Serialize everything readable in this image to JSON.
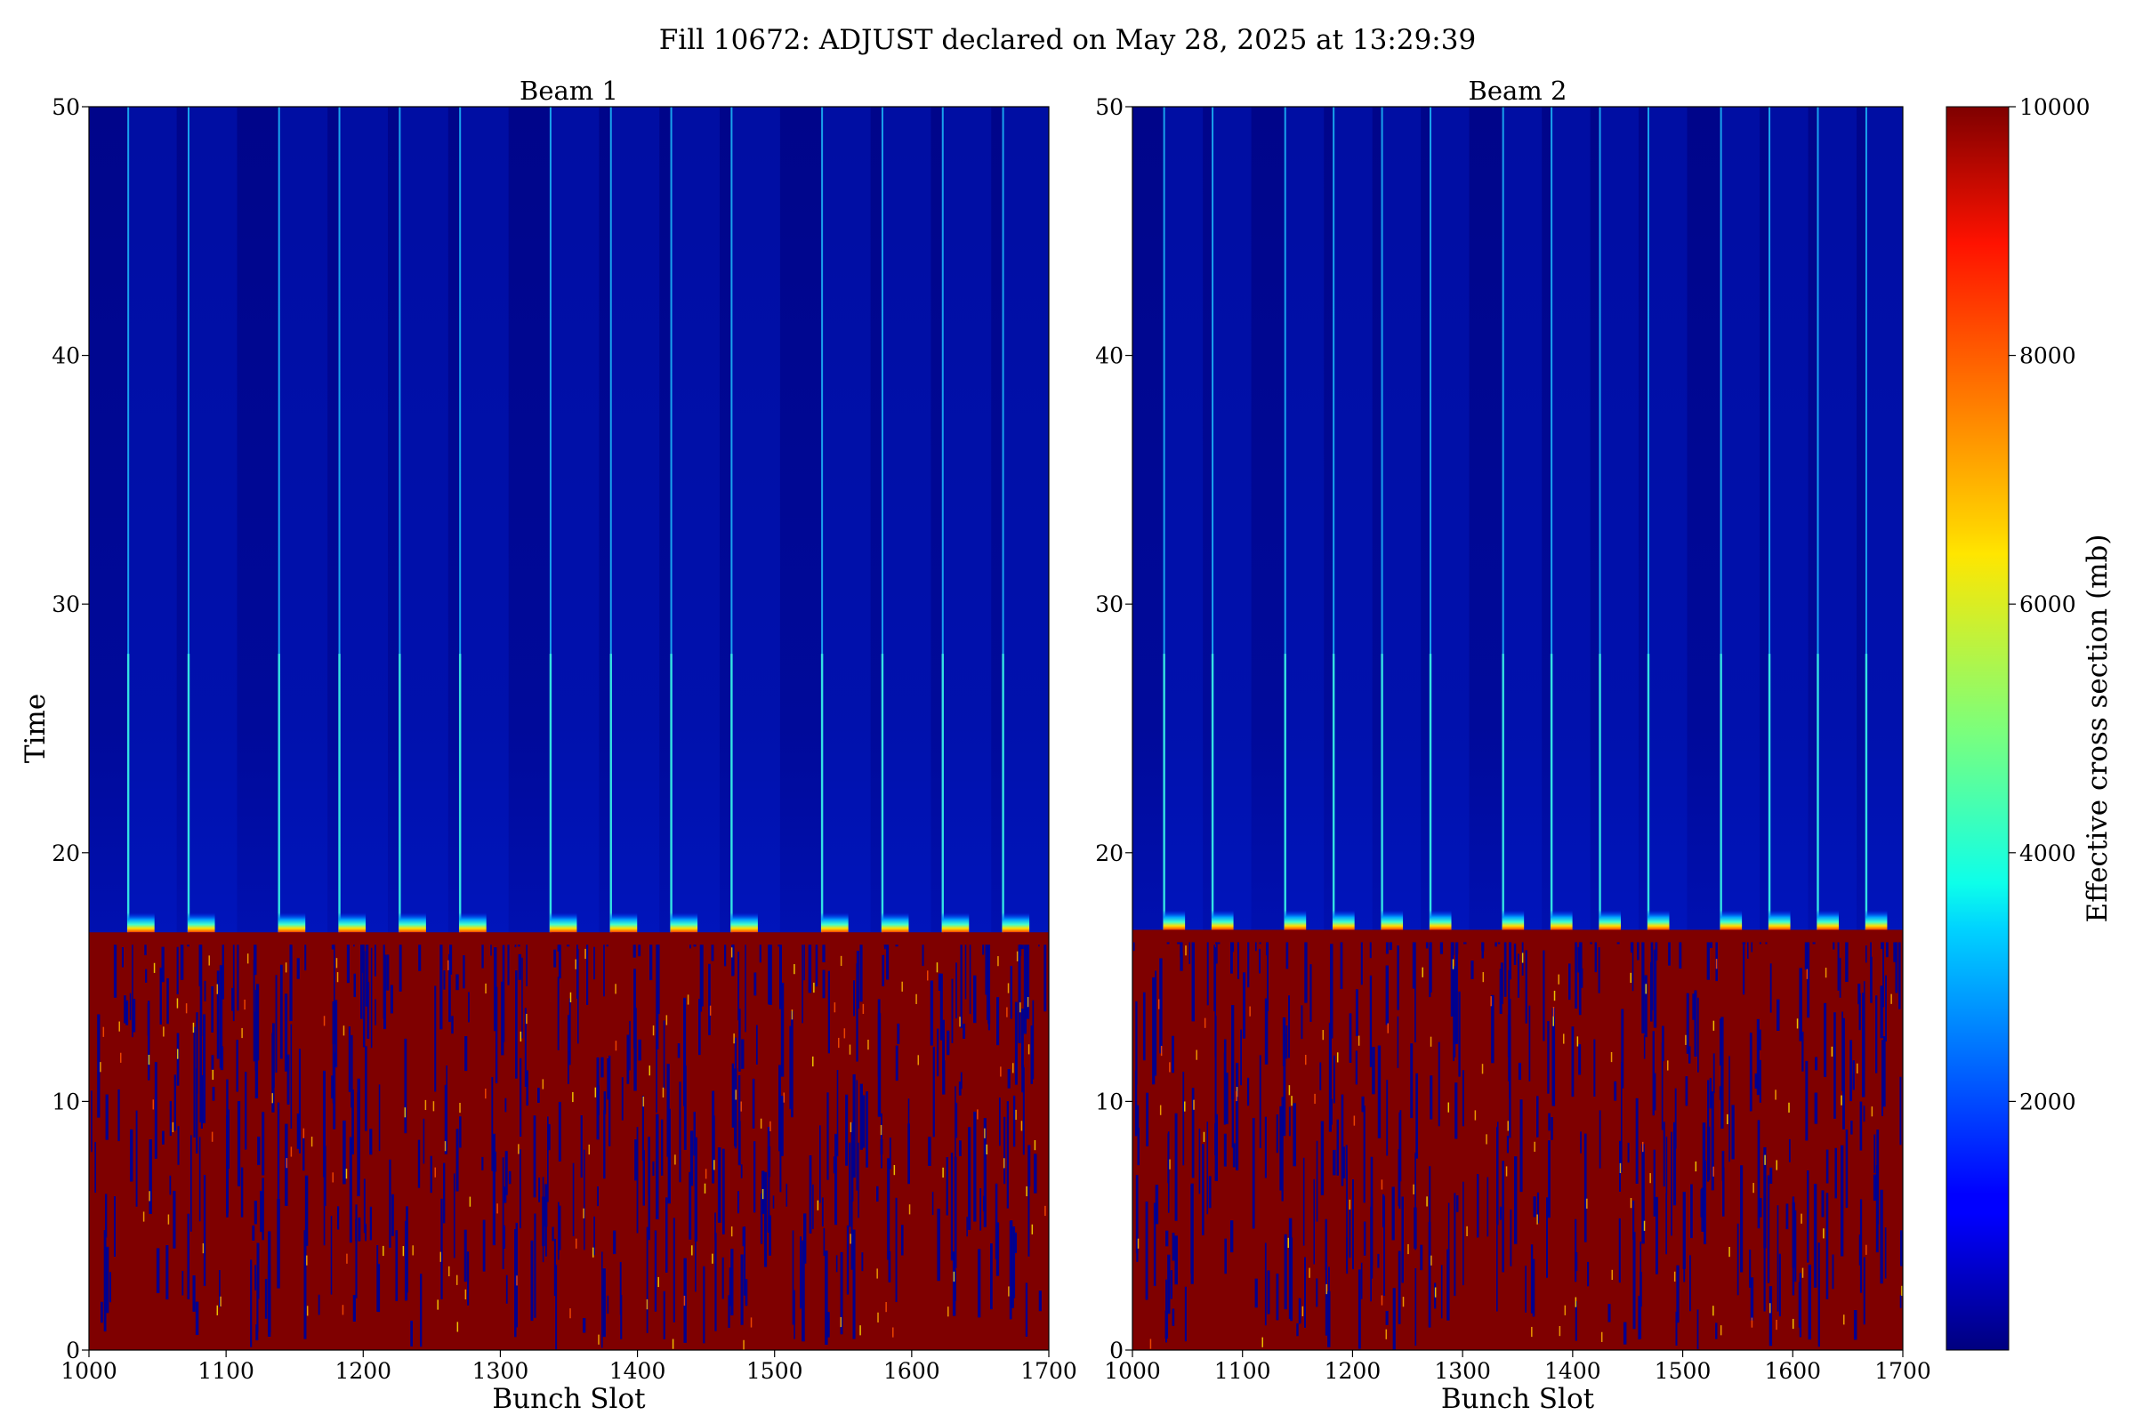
{
  "chart_data": {
    "type": "heatmap",
    "title": "Fill 10672: ADJUST declared on May 28, 2025 at 13:29:39",
    "colorbar": {
      "label": "Effective cross section (mb)",
      "range": [
        0,
        10000
      ],
      "ticks": [
        "2000",
        "4000",
        "6000",
        "8000",
        "10000"
      ],
      "colormap": "jet"
    },
    "panels": [
      {
        "title": "Beam 1",
        "xlabel": "Bunch Slot",
        "ylabel": "Time",
        "xlim": [
          1000,
          1700
        ],
        "ylim": [
          0,
          50
        ],
        "x_ticks": [
          "1000",
          "1100",
          "1200",
          "1300",
          "1400",
          "1500",
          "1600",
          "1700"
        ],
        "y_ticks": [
          "0",
          "10",
          "20",
          "30",
          "40",
          "50"
        ],
        "transition_time": 16.8,
        "train_starts": [
          1028,
          1072,
          1138,
          1182,
          1226,
          1270,
          1336,
          1380,
          1424,
          1468,
          1534,
          1578,
          1622,
          1666
        ],
        "regions": [
          {
            "time_range": [
              0,
              16.5
            ],
            "value": 10000
          },
          {
            "time_range": [
              17.5,
              50
            ],
            "value": 300
          }
        ]
      },
      {
        "title": "Beam 2",
        "xlabel": "Bunch Slot",
        "ylabel": "",
        "xlim": [
          1000,
          1700
        ],
        "ylim": [
          0,
          50
        ],
        "x_ticks": [
          "1000",
          "1100",
          "1200",
          "1300",
          "1400",
          "1500",
          "1600",
          "1700"
        ],
        "y_ticks": [
          "0",
          "10",
          "20",
          "30",
          "40",
          "50"
        ],
        "transition_time": 16.9,
        "train_starts": [
          1028,
          1072,
          1138,
          1182,
          1226,
          1270,
          1336,
          1380,
          1424,
          1468,
          1534,
          1578,
          1622,
          1666
        ],
        "regions": [
          {
            "time_range": [
              0,
              16.5
            ],
            "value": 10000
          },
          {
            "time_range": [
              17.5,
              50
            ],
            "value": 300
          }
        ]
      }
    ]
  }
}
